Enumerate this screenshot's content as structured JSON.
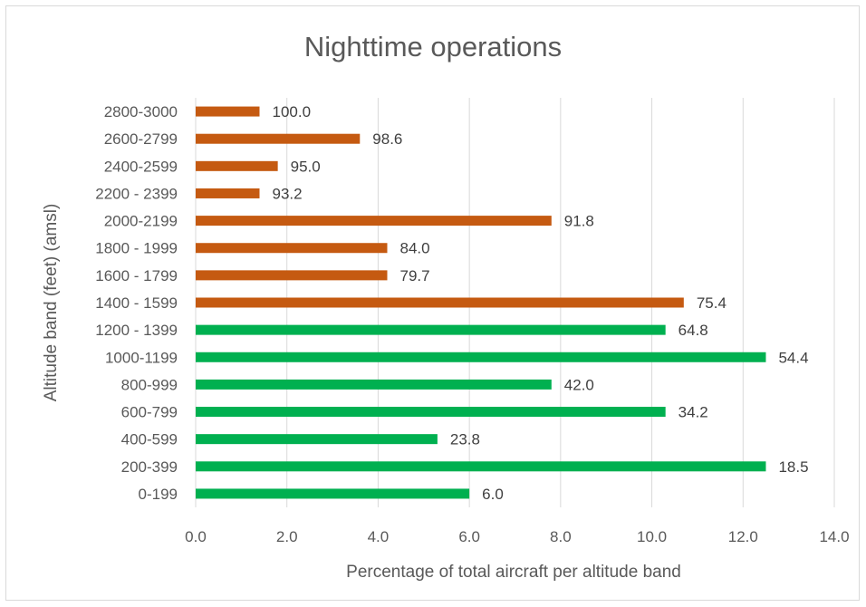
{
  "chart_data": {
    "type": "bar",
    "orientation": "horizontal",
    "title": "Nighttime operations",
    "xlabel": "Percentage of total aircraft per altitude band",
    "ylabel": "Altitude band (feet) (amsl)",
    "xlim": [
      0,
      14
    ],
    "xticks": [
      "0.0",
      "2.0",
      "4.0",
      "6.0",
      "8.0",
      "10.0",
      "12.0",
      "14.0"
    ],
    "grid": "vertical",
    "legend": "none",
    "colors": {
      "low": "#00b050",
      "high": "#c55a11"
    },
    "categories": [
      "0-199",
      "200-399",
      "400-599",
      "600-799",
      "800-999",
      "1000-1199",
      "1200 - 1399",
      "1400 - 1599",
      "1600 - 1799",
      "1800 - 1999",
      "2000-2199",
      "2200 - 2399",
      "2400-2599",
      "2600-2799",
      "2800-3000"
    ],
    "values": [
      6.0,
      12.5,
      5.3,
      10.3,
      7.8,
      12.5,
      10.3,
      10.7,
      4.2,
      4.2,
      7.8,
      1.4,
      1.8,
      3.6,
      1.4
    ],
    "data_labels": [
      "6.0",
      "18.5",
      "23.8",
      "34.2",
      "42.0",
      "54.4",
      "64.8",
      "75.4",
      "79.7",
      "84.0",
      "91.8",
      "93.2",
      "95.0",
      "98.6",
      "100.0"
    ],
    "bar_color_keys": [
      "low",
      "low",
      "low",
      "low",
      "low",
      "low",
      "low",
      "high",
      "high",
      "high",
      "high",
      "high",
      "high",
      "high",
      "high"
    ]
  }
}
